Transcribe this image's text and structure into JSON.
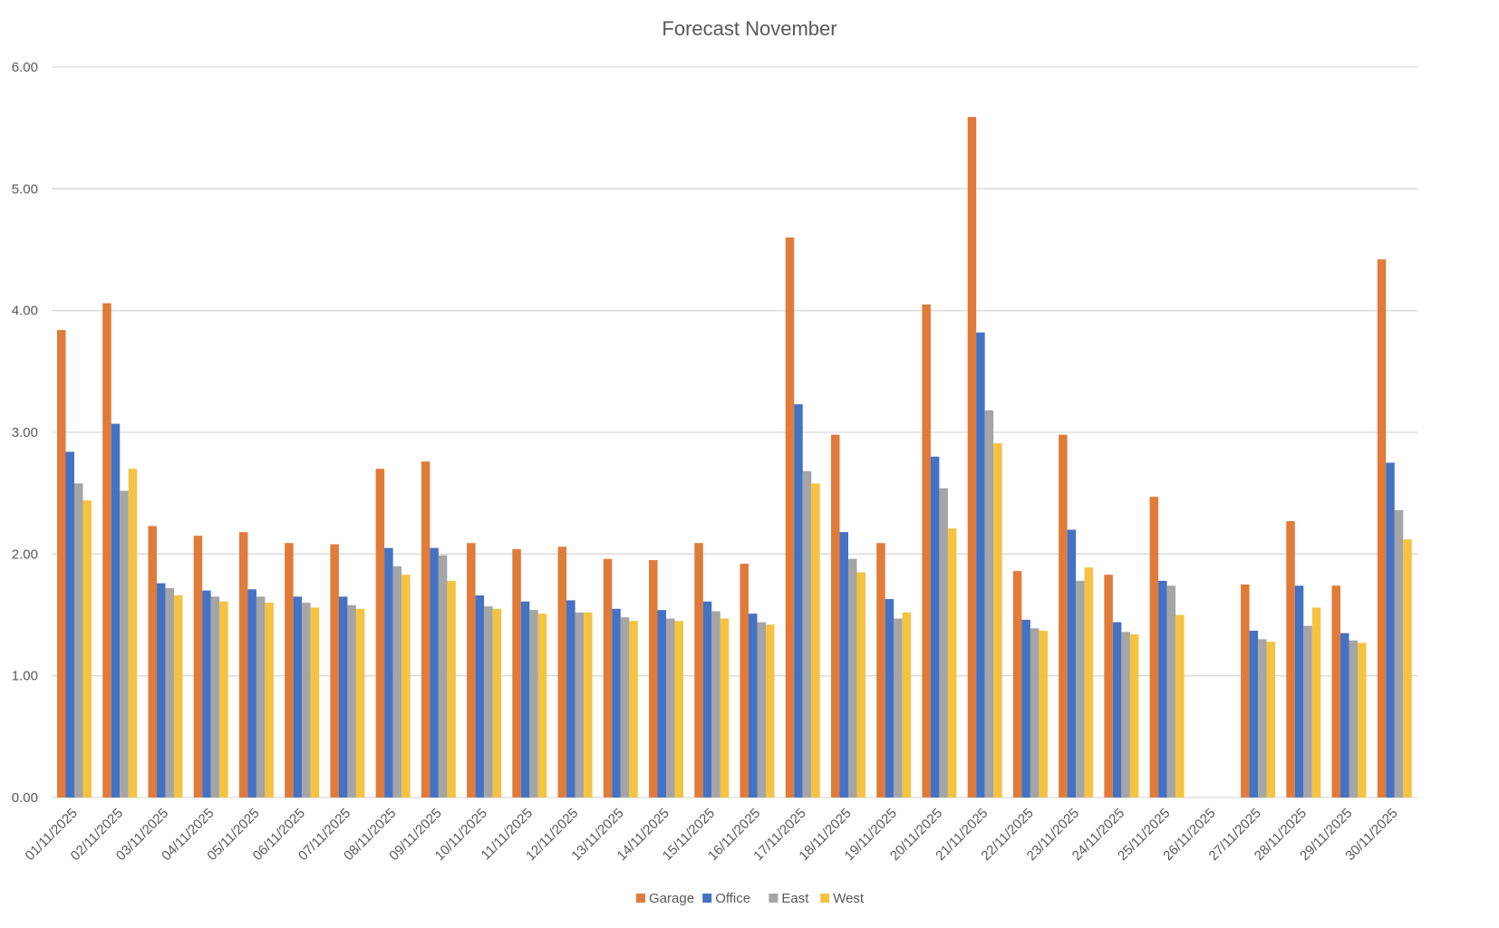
{
  "chart_data": {
    "type": "bar",
    "title": "Forecast November",
    "xlabel": "",
    "ylabel": "",
    "ylim": [
      0,
      6
    ],
    "yticks": [
      "0.00",
      "1.00",
      "2.00",
      "3.00",
      "4.00",
      "5.00",
      "6.00"
    ],
    "grid": true,
    "legend_position": "bottom",
    "categories": [
      "01/11/2025",
      "02/11/2025",
      "03/11/2025",
      "04/11/2025",
      "05/11/2025",
      "06/11/2025",
      "07/11/2025",
      "08/11/2025",
      "09/11/2025",
      "10/11/2025",
      "11/11/2025",
      "12/11/2025",
      "13/11/2025",
      "14/11/2025",
      "15/11/2025",
      "16/11/2025",
      "17/11/2025",
      "18/11/2025",
      "19/11/2025",
      "20/11/2025",
      "21/11/2025",
      "22/11/2025",
      "23/11/2025",
      "24/11/2025",
      "25/11/2025",
      "26/11/2025",
      "27/11/2025",
      "28/11/2025",
      "29/11/2025",
      "30/11/2025"
    ],
    "series": [
      {
        "name": "Garage",
        "color": "#E07B39",
        "values": [
          3.84,
          4.06,
          2.23,
          2.15,
          2.18,
          2.09,
          2.08,
          2.7,
          2.76,
          2.09,
          2.04,
          2.06,
          1.96,
          1.95,
          2.09,
          1.92,
          4.6,
          2.98,
          2.09,
          4.05,
          5.59,
          1.86,
          2.98,
          1.83,
          2.47,
          null,
          1.75,
          2.27,
          1.74,
          4.42
        ]
      },
      {
        "name": "Office",
        "color": "#4472C4",
        "values": [
          2.84,
          3.07,
          1.76,
          1.7,
          1.71,
          1.65,
          1.65,
          2.05,
          2.05,
          1.66,
          1.61,
          1.62,
          1.55,
          1.54,
          1.61,
          1.51,
          3.23,
          2.18,
          1.63,
          2.8,
          3.82,
          1.46,
          2.2,
          1.44,
          1.78,
          null,
          1.37,
          1.74,
          1.35,
          2.75
        ]
      },
      {
        "name": "East",
        "color": "#A5A5A5",
        "values": [
          2.58,
          2.52,
          1.72,
          1.65,
          1.65,
          1.6,
          1.58,
          1.9,
          1.99,
          1.57,
          1.54,
          1.52,
          1.48,
          1.47,
          1.53,
          1.44,
          2.68,
          1.96,
          1.47,
          2.54,
          3.18,
          1.39,
          1.78,
          1.36,
          1.74,
          null,
          1.3,
          1.41,
          1.29,
          2.36
        ]
      },
      {
        "name": "West",
        "color": "#F5C342",
        "values": [
          2.44,
          2.7,
          1.66,
          1.61,
          1.6,
          1.56,
          1.55,
          1.83,
          1.78,
          1.55,
          1.51,
          1.52,
          1.45,
          1.45,
          1.47,
          1.42,
          2.58,
          1.85,
          1.52,
          2.21,
          2.91,
          1.37,
          1.89,
          1.34,
          1.5,
          null,
          1.28,
          1.56,
          1.27,
          2.12
        ]
      }
    ]
  }
}
